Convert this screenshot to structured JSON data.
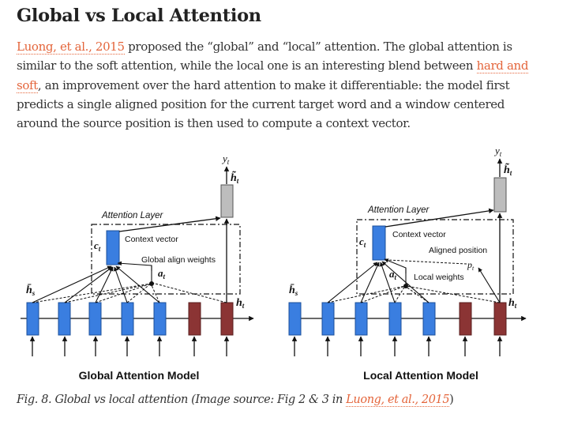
{
  "article": {
    "title": "Global vs Local Attention",
    "paragraph": {
      "link1": "Luong, et al., 2015",
      "text1": " proposed the “global” and “local” attention. The global attention is similar to the soft attention, while the local one is an interesting blend between ",
      "link2": "hard and soft",
      "text2": ", an improvement over the hard attention to make it differentiable: the model first predicts a single aligned position for the current target word and a window centered around the source position is then used to compute a context vector."
    }
  },
  "figure": {
    "global": {
      "model_label": "Global Attention Model",
      "layer_label": "Attention Layer",
      "context_label": "Context vector",
      "weights_label": "Global align weights",
      "y_label": "y",
      "y_sub": "t",
      "htilde_label": "h̃",
      "htilde_sub": "t",
      "c_label": "c",
      "c_sub": "t",
      "a_label": "a",
      "a_sub": "t",
      "hs_label": "h̄",
      "hs_sub": "s",
      "ht_label": "h",
      "ht_sub": "t"
    },
    "local": {
      "model_label": "Local Attention Model",
      "layer_label": "Attention Layer",
      "context_label": "Context vector",
      "aligned_label": "Aligned position",
      "weights_label": "Local weights",
      "p_label": "p",
      "p_sub": "t",
      "y_label": "y",
      "y_sub": "t",
      "htilde_label": "h̃",
      "htilde_sub": "t",
      "c_label": "c",
      "c_sub": "t",
      "a_label": "a",
      "a_sub": "t",
      "hs_label": "h̄",
      "hs_sub": "s",
      "ht_label": "h",
      "ht_sub": "t"
    },
    "colors": {
      "source_state": "#3a7ee0",
      "target_state": "#8b3434",
      "attentional_state": "#bdbdbd"
    }
  },
  "caption": {
    "text": "Fig. 8. Global vs local attention (Image source: Fig 2 & 3 in ",
    "link": "Luong, et al., 2015",
    "close": ")"
  }
}
